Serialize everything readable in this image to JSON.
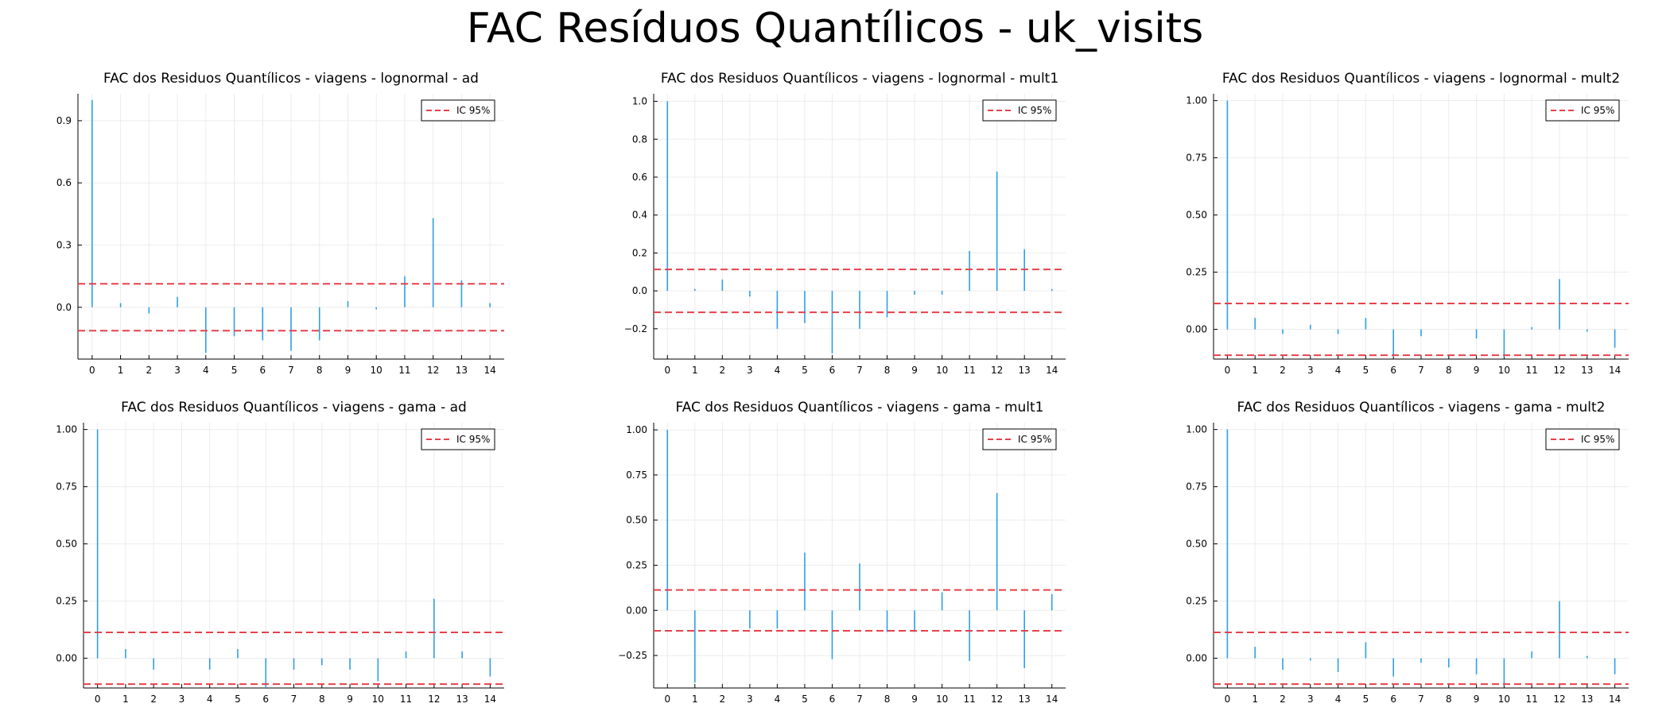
{
  "suptitle": "FAC Resíduos Quantílicos - uk_visits",
  "style": {
    "bar_color": "#2f9fe6",
    "ci_color": "#e8404a",
    "grid_color": "#ececec",
    "axis_color": "#000000"
  },
  "chart_data": [
    {
      "type": "bar",
      "title": "FAC dos Residuos Quantílicos - viagens - lognormal - ad",
      "legend": {
        "label": "IC 95%",
        "position": "top-right"
      },
      "x": [
        0,
        1,
        2,
        3,
        4,
        5,
        6,
        7,
        8,
        9,
        10,
        11,
        12,
        13,
        14
      ],
      "values": [
        1.0,
        0.02,
        -0.03,
        0.05,
        -0.22,
        -0.14,
        -0.16,
        -0.21,
        -0.16,
        0.03,
        -0.01,
        0.15,
        0.43,
        0.13,
        0.02
      ],
      "ci": [
        0.113,
        -0.113
      ],
      "ylim": [
        -0.25,
        1.03
      ],
      "yticks": [
        0.0,
        0.3,
        0.6,
        0.9
      ],
      "ytick_labels": [
        "0.0",
        "0.3",
        "0.6",
        "0.9"
      ],
      "grid": true
    },
    {
      "type": "bar",
      "title": "FAC dos Residuos Quantílicos - viagens - lognormal - mult1",
      "legend": {
        "label": "IC 95%",
        "position": "top-right"
      },
      "x": [
        0,
        1,
        2,
        3,
        4,
        5,
        6,
        7,
        8,
        9,
        10,
        11,
        12,
        13,
        14
      ],
      "values": [
        1.0,
        0.01,
        0.06,
        -0.03,
        -0.2,
        -0.17,
        -0.33,
        -0.2,
        -0.14,
        -0.02,
        -0.02,
        0.21,
        0.63,
        0.22,
        0.01
      ],
      "ci": [
        0.113,
        -0.113
      ],
      "ylim": [
        -0.36,
        1.04
      ],
      "yticks": [
        -0.2,
        0.0,
        0.2,
        0.4,
        0.6,
        0.8,
        1.0
      ],
      "ytick_labels": [
        "−0.2",
        "0.0",
        "0.2",
        "0.4",
        "0.6",
        "0.8",
        "1.0"
      ],
      "grid": true
    },
    {
      "type": "bar",
      "title": "FAC dos Residuos Quantílicos - viagens - lognormal - mult2",
      "legend": {
        "label": "IC 95%",
        "position": "top-right"
      },
      "x": [
        0,
        1,
        2,
        3,
        4,
        5,
        6,
        7,
        8,
        9,
        10,
        11,
        12,
        13,
        14
      ],
      "values": [
        1.0,
        0.05,
        -0.02,
        0.02,
        -0.02,
        0.05,
        -0.12,
        -0.03,
        0.0,
        -0.04,
        -0.12,
        0.01,
        0.22,
        -0.01,
        -0.08
      ],
      "ci": [
        0.113,
        -0.113
      ],
      "ylim": [
        -0.13,
        1.03
      ],
      "yticks": [
        0.0,
        0.25,
        0.5,
        0.75,
        1.0
      ],
      "ytick_labels": [
        "0.00",
        "0.25",
        "0.50",
        "0.75",
        "1.00"
      ],
      "grid": true
    },
    {
      "type": "bar",
      "title": "FAC dos Residuos Quantílicos - viagens - gama - ad",
      "legend": {
        "label": "IC 95%",
        "position": "top-right"
      },
      "x": [
        0,
        1,
        2,
        3,
        4,
        5,
        6,
        7,
        8,
        9,
        10,
        11,
        12,
        13,
        14
      ],
      "values": [
        1.0,
        0.04,
        -0.05,
        0.0,
        -0.05,
        0.04,
        -0.13,
        -0.05,
        -0.03,
        -0.05,
        -0.1,
        0.03,
        0.26,
        0.03,
        -0.08
      ],
      "ci": [
        0.113,
        -0.113
      ],
      "ylim": [
        -0.13,
        1.03
      ],
      "yticks": [
        0.0,
        0.25,
        0.5,
        0.75,
        1.0
      ],
      "ytick_labels": [
        "0.00",
        "0.25",
        "0.50",
        "0.75",
        "1.00"
      ],
      "grid": true
    },
    {
      "type": "bar",
      "title": "FAC dos Residuos Quantílicos - viagens - gama - mult1",
      "legend": {
        "label": "IC 95%",
        "position": "top-right"
      },
      "x": [
        0,
        1,
        2,
        3,
        4,
        5,
        6,
        7,
        8,
        9,
        10,
        11,
        12,
        13,
        14
      ],
      "values": [
        1.0,
        -0.4,
        0.0,
        -0.1,
        -0.1,
        0.32,
        -0.27,
        0.26,
        -0.12,
        -0.12,
        0.1,
        -0.28,
        0.65,
        -0.32,
        0.09
      ],
      "ci": [
        0.113,
        -0.113
      ],
      "ylim": [
        -0.43,
        1.04
      ],
      "yticks": [
        -0.25,
        0.0,
        0.25,
        0.5,
        0.75,
        1.0
      ],
      "ytick_labels": [
        "−0.25",
        "0.00",
        "0.25",
        "0.50",
        "0.75",
        "1.00"
      ],
      "grid": true
    },
    {
      "type": "bar",
      "title": "FAC dos Residuos Quantílicos - viagens - gama - mult2",
      "legend": {
        "label": "IC 95%",
        "position": "top-right"
      },
      "x": [
        0,
        1,
        2,
        3,
        4,
        5,
        6,
        7,
        8,
        9,
        10,
        11,
        12,
        13,
        14
      ],
      "values": [
        1.0,
        0.05,
        -0.05,
        -0.01,
        -0.06,
        0.07,
        -0.08,
        -0.02,
        -0.04,
        -0.07,
        -0.12,
        0.03,
        0.25,
        0.01,
        -0.07
      ],
      "ci": [
        0.113,
        -0.113
      ],
      "ylim": [
        -0.13,
        1.03
      ],
      "yticks": [
        0.0,
        0.25,
        0.5,
        0.75,
        1.0
      ],
      "ytick_labels": [
        "0.00",
        "0.25",
        "0.50",
        "0.75",
        "1.00"
      ],
      "grid": true
    }
  ]
}
